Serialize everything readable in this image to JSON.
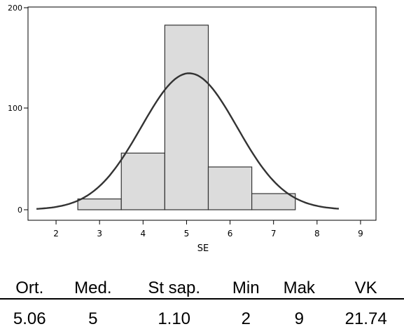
{
  "chart_data": {
    "type": "bar",
    "title": "",
    "xlabel": "SE",
    "ylabel": "",
    "xlim": [
      1.5,
      9.5
    ],
    "ylim": [
      0,
      200
    ],
    "x_ticks": [
      2,
      3,
      4,
      5,
      6,
      7,
      8,
      9
    ],
    "x_tick_labels": [
      "2",
      "3",
      "4",
      "5",
      "6",
      "7",
      "8",
      "9"
    ],
    "y_ticks": [
      0,
      100,
      200
    ],
    "y_tick_labels": [
      "0",
      "100",
      "200"
    ],
    "bins": [
      {
        "from": 1.5,
        "to": 2.5,
        "value": 3
      },
      {
        "from": 2.5,
        "to": 3.5,
        "value": 20
      },
      {
        "from": 3.5,
        "to": 4.5,
        "value": 63
      },
      {
        "from": 4.5,
        "to": 5.5,
        "value": 183
      },
      {
        "from": 5.5,
        "to": 6.5,
        "value": 50
      },
      {
        "from": 6.5,
        "to": 7.5,
        "value": 25
      },
      {
        "from": 7.5,
        "to": 8.5,
        "value": 6
      },
      {
        "from": 8.5,
        "to": 9.5,
        "value": 3
      }
    ],
    "normal_curve": {
      "mean": 5.06,
      "sd": 1.1,
      "peak": 128
    },
    "grid": false,
    "legend": "none",
    "colors": {
      "bar_fill": "#dcdcdc",
      "bar_stroke": "#333333",
      "curve": "#333333",
      "axis": "#000000"
    }
  },
  "stats": {
    "headers": [
      "Ort.",
      "Med.",
      "St sap.",
      "Min",
      "Mak",
      "VK"
    ],
    "values": [
      "5.06",
      "5",
      "1.10",
      "2",
      "9",
      "21.74"
    ]
  }
}
